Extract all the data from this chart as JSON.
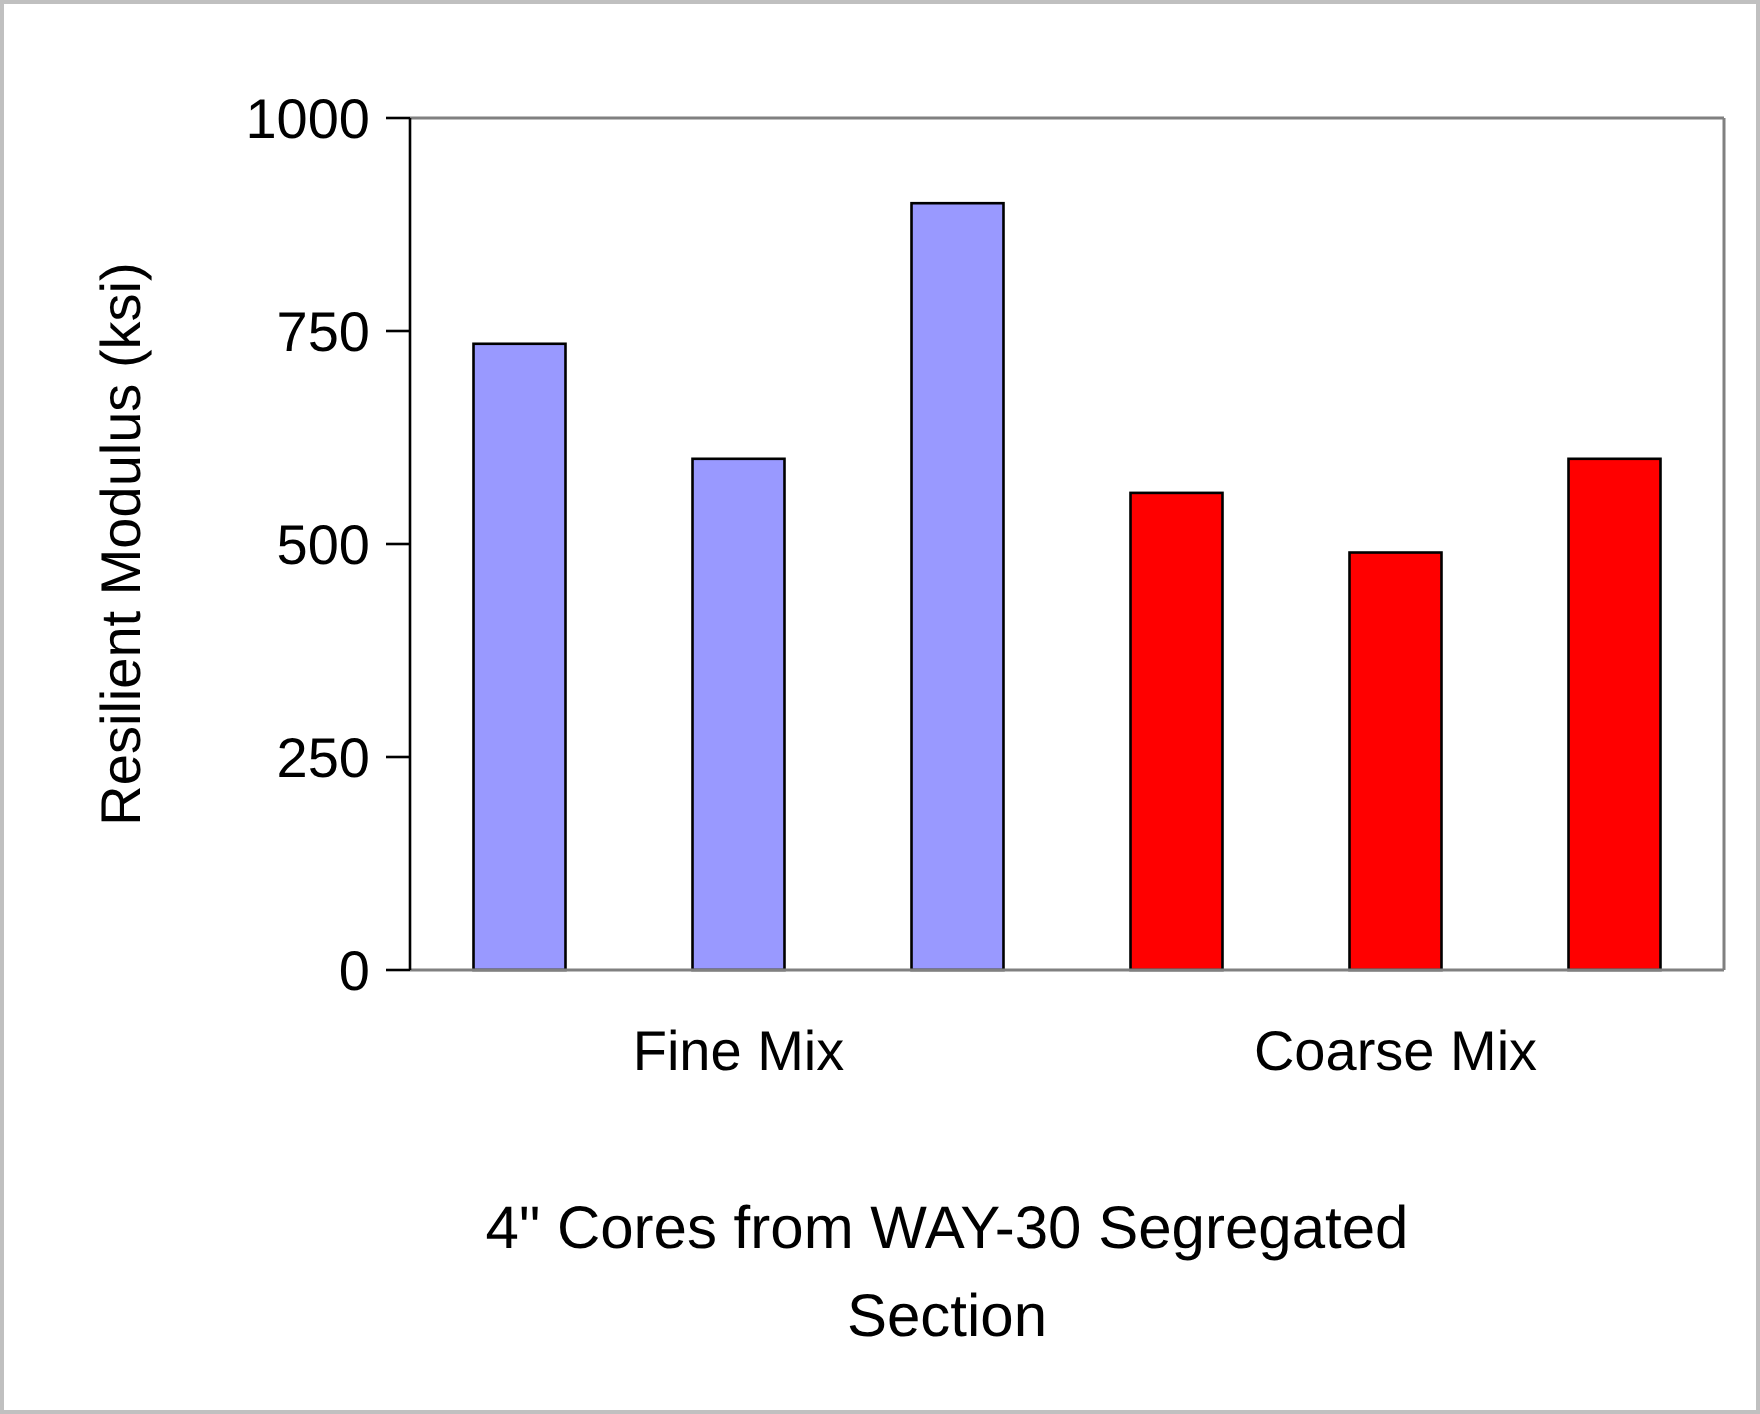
{
  "chart_data": {
    "type": "bar",
    "xlabel": "4\" Cores from WAY-30 Segregated Section",
    "ylabel": "Resilient Modulus (ksi)",
    "categories": [
      "Fine Mix",
      "Coarse Mix"
    ],
    "series": [
      {
        "colors": [
          "#9999ff",
          "#ff0000"
        ],
        "values": [
          735,
          560
        ]
      },
      {
        "colors": [
          "#9999ff",
          "#ff0000"
        ],
        "values": [
          600,
          490
        ]
      },
      {
        "colors": [
          "#9999ff",
          "#ff0000"
        ],
        "values": [
          900,
          600
        ]
      }
    ],
    "ylim": [
      0,
      1000
    ],
    "yticks": [
      0,
      250,
      500,
      750,
      1000
    ],
    "grid": false
  }
}
